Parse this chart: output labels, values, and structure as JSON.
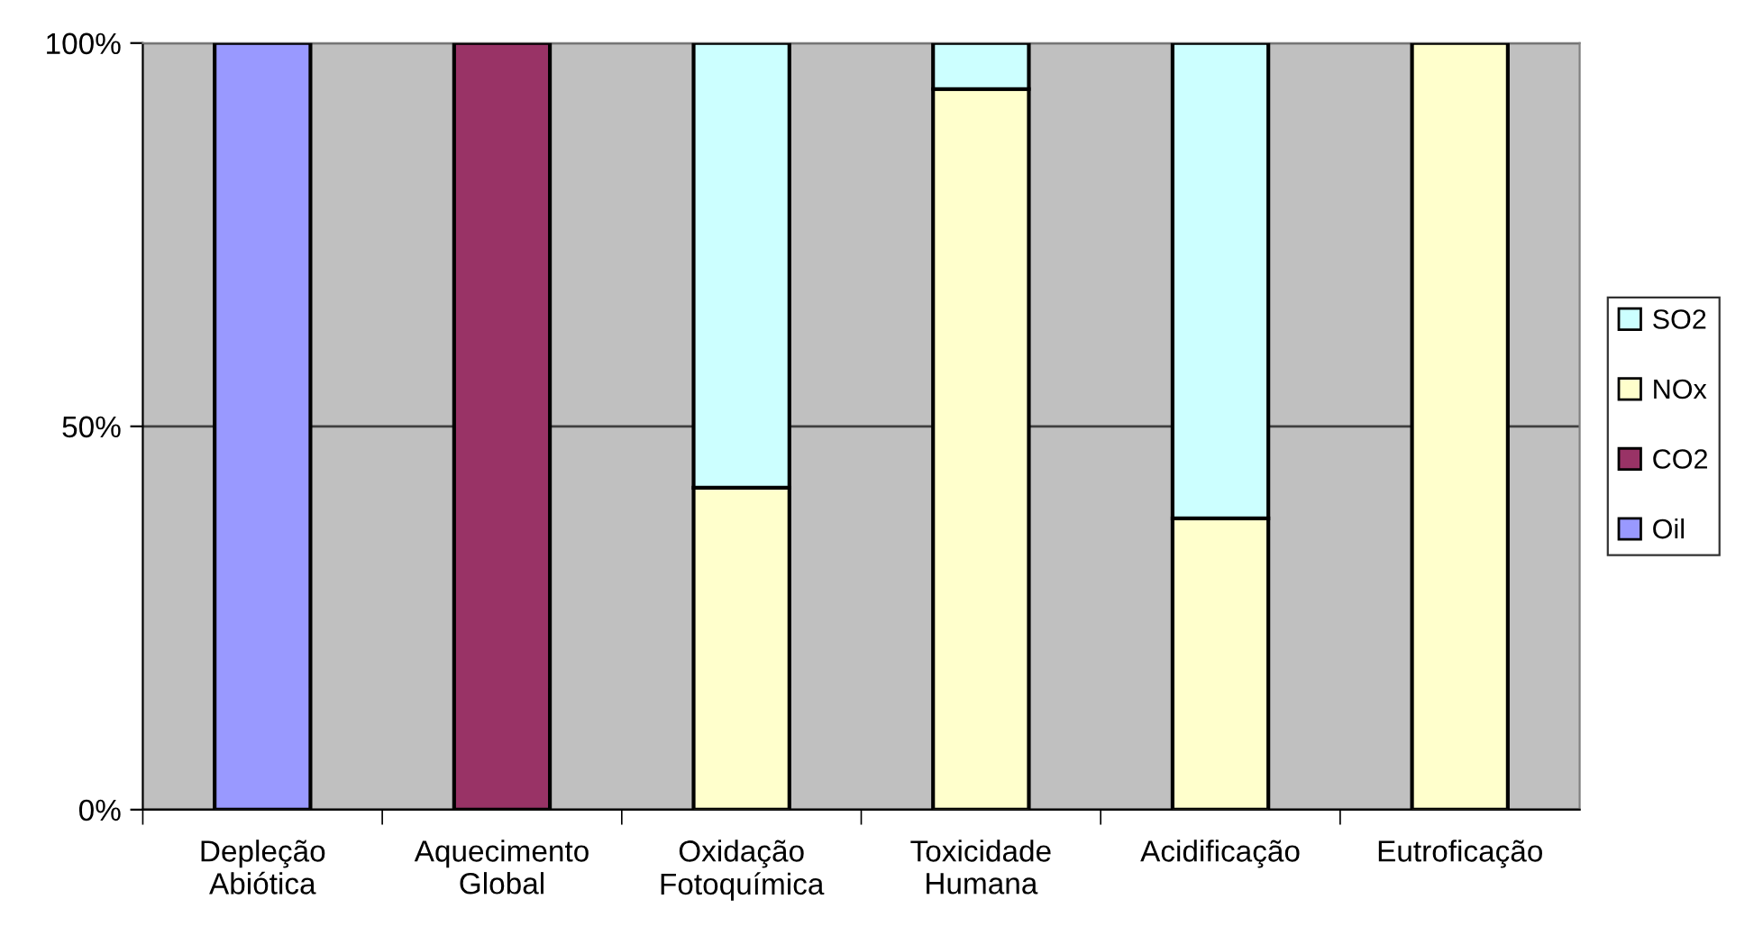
{
  "chart_data": {
    "type": "bar",
    "stacked": true,
    "categories": [
      "Depleção\nAbiótica",
      "Aquecimento\nGlobal",
      "Oxidação\nFotoquímica",
      "Toxicidade\nHumana",
      "Acidificação",
      "Eutroficação"
    ],
    "series": [
      {
        "name": "Oil",
        "color": "#9999ff",
        "values": [
          100,
          0,
          0,
          0,
          0,
          0
        ]
      },
      {
        "name": "CO2",
        "color": "#993366",
        "values": [
          0,
          100,
          0,
          0,
          0,
          0
        ]
      },
      {
        "name": "NOx",
        "color": "#ffffcc",
        "values": [
          0,
          0,
          42,
          94,
          38,
          100
        ]
      },
      {
        "name": "SO2",
        "color": "#ccffff",
        "values": [
          0,
          0,
          58,
          6,
          62,
          0
        ]
      }
    ],
    "ylim": [
      0,
      100
    ],
    "yticks": [
      {
        "value": 0,
        "label": "0%"
      },
      {
        "value": 50,
        "label": "50%"
      },
      {
        "value": 100,
        "label": "100%"
      }
    ],
    "grid": "y",
    "legend": "right"
  }
}
